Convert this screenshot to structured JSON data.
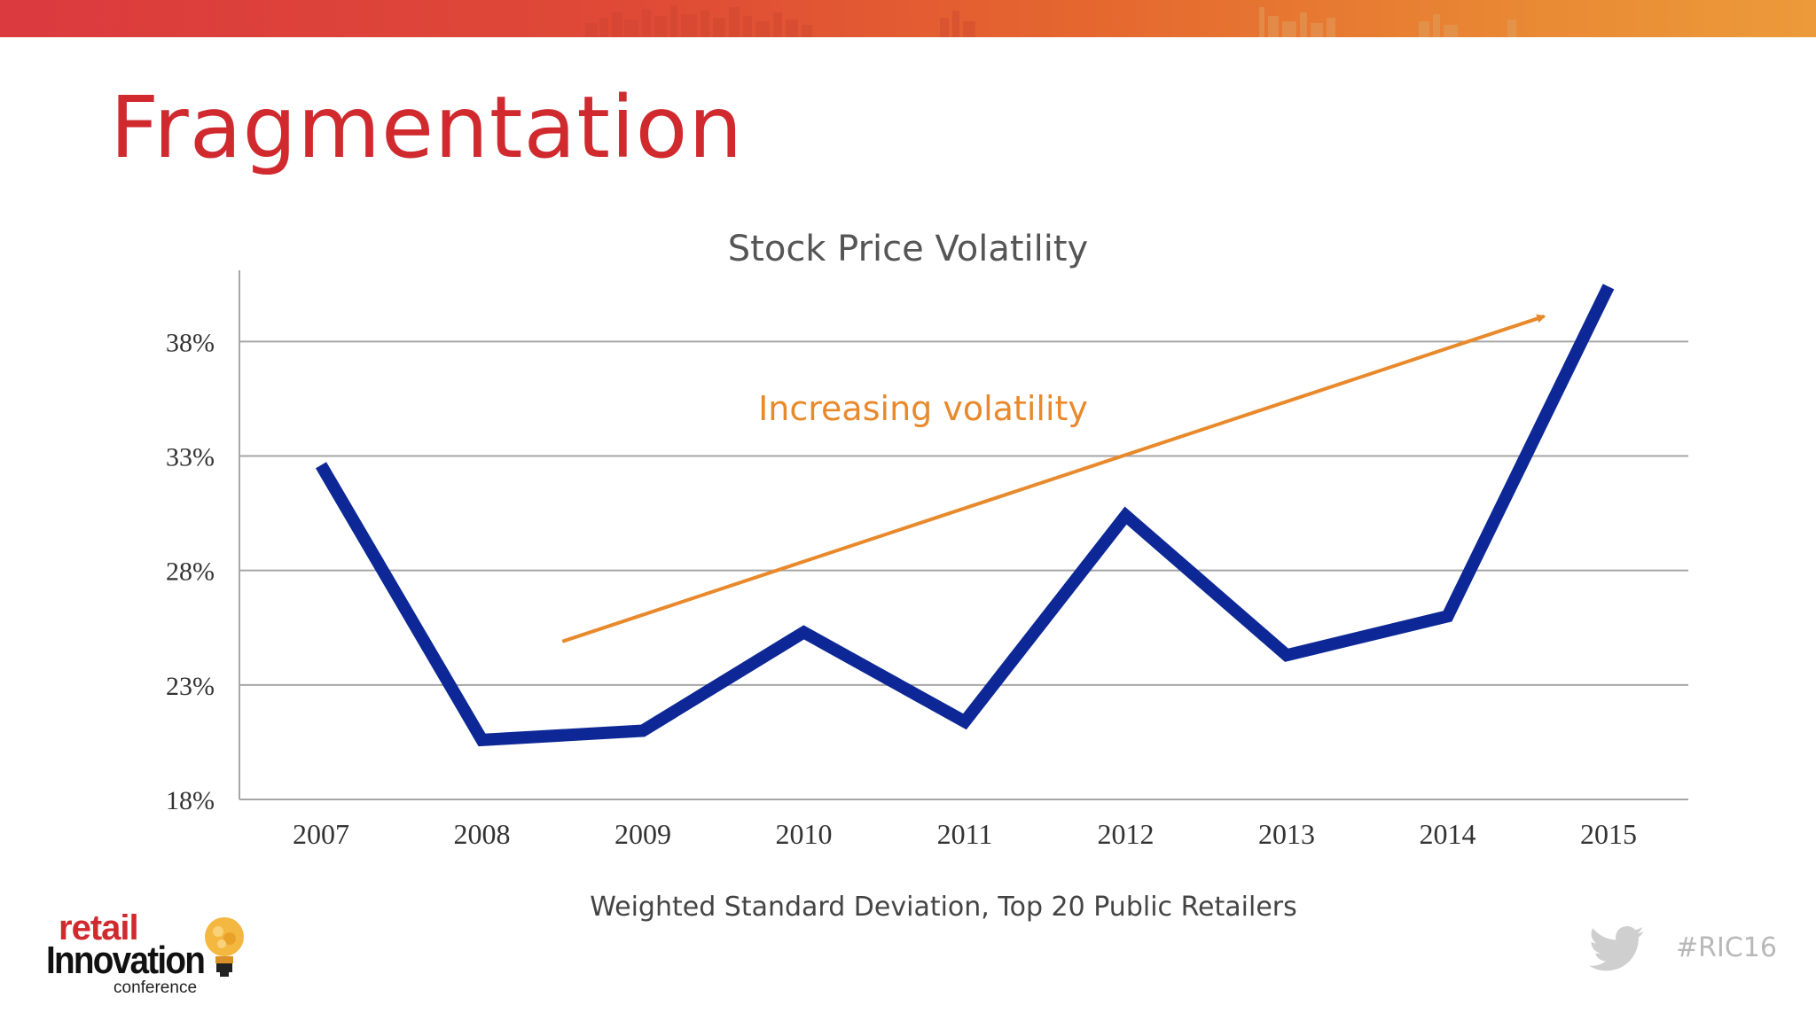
{
  "slide": {
    "title": "Fragmentation",
    "hashtag": "#RIC16"
  },
  "logo": {
    "line1": "retail",
    "line2": "Innovation",
    "line3": "conference"
  },
  "colors": {
    "title": "#d02a2f",
    "series": "#0d2896",
    "trend": "#e8892b",
    "grid": "#a6a6a6"
  },
  "icons": {
    "share": "twitter-bird-icon",
    "logo_mark": "lightbulb-icon"
  },
  "chart_data": {
    "type": "line",
    "title": "Stock Price Volatility",
    "subtitle": "Weighted Standard Deviation, Top 20 Public Retailers",
    "xlabel": "",
    "ylabel": "",
    "categories": [
      "2007",
      "2008",
      "2009",
      "2010",
      "2011",
      "2012",
      "2013",
      "2014",
      "2015"
    ],
    "series": [
      {
        "values": [
          32.6,
          20.6,
          21.0,
          25.3,
          21.4,
          30.4,
          24.3,
          26.0,
          40.4
        ]
      }
    ],
    "ylim": [
      18,
      42
    ],
    "yticks": [
      18,
      23,
      28,
      33,
      38
    ],
    "ytick_labels": [
      "18%",
      "23%",
      "28%",
      "33%",
      "38%"
    ],
    "grid": true,
    "legend": "none",
    "annotations": [
      {
        "text": "Increasing volatility",
        "type": "arrow",
        "from": {
          "x": "2008.5",
          "y": 24.9
        },
        "to": {
          "x": "2014.6",
          "y": 39.1
        }
      }
    ]
  }
}
